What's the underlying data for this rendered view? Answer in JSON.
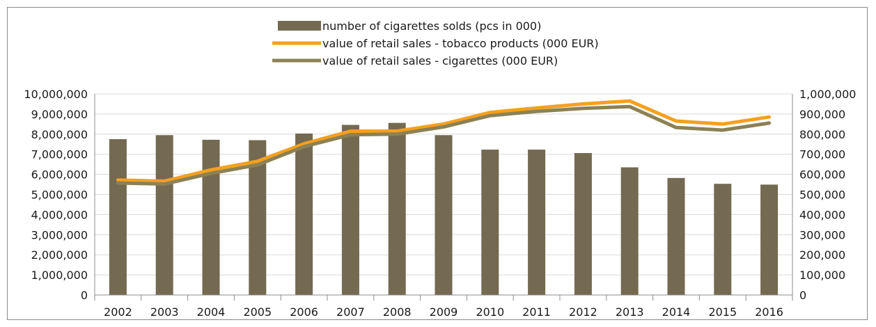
{
  "chart_data": {
    "type": "bar",
    "categories": [
      "2002",
      "2003",
      "2004",
      "2005",
      "2006",
      "2007",
      "2008",
      "2009",
      "2010",
      "2011",
      "2012",
      "2013",
      "2014",
      "2015",
      "2016"
    ],
    "y_left": {
      "min": 0,
      "max": 10000000,
      "step": 1000000,
      "tick_labels": [
        "0",
        "1,000,000",
        "2,000,000",
        "3,000,000",
        "4,000,000",
        "5,000,000",
        "6,000,000",
        "7,000,000",
        "8,000,000",
        "9,000,000",
        "10,000,000"
      ]
    },
    "y_right": {
      "min": 0,
      "max": 1000000,
      "step": 100000,
      "tick_labels": [
        "0",
        "100,000",
        "200,000",
        "300,000",
        "400,000",
        "500,000",
        "600,000",
        "700,000",
        "800,000",
        "900,000",
        "1,000,000"
      ]
    },
    "grid": true,
    "legend_position": "top",
    "series": [
      {
        "name": "number of cigarettes solds (pcs in 000)",
        "type": "bar",
        "axis": "left",
        "color": "#746951",
        "values": [
          7750000,
          7950000,
          7720000,
          7700000,
          8030000,
          8460000,
          8560000,
          7950000,
          7230000,
          7230000,
          7060000,
          6350000,
          5820000,
          5530000,
          5490000
        ]
      },
      {
        "name": "value of retail sales - tobacco products (000 EUR)",
        "type": "line",
        "axis": "right",
        "color": "#f5a01f",
        "values": [
          572000,
          566000,
          622000,
          665000,
          752000,
          815000,
          815000,
          850000,
          908000,
          930000,
          950000,
          965000,
          865000,
          850000,
          885000
        ]
      },
      {
        "name": "value of retail sales - cigarettes (000 EUR)",
        "type": "line",
        "axis": "right",
        "color": "#8c8155",
        "values": [
          557000,
          552000,
          605000,
          647000,
          738000,
          797000,
          800000,
          836000,
          892000,
          913000,
          928000,
          937000,
          833000,
          820000,
          855000
        ]
      }
    ]
  }
}
